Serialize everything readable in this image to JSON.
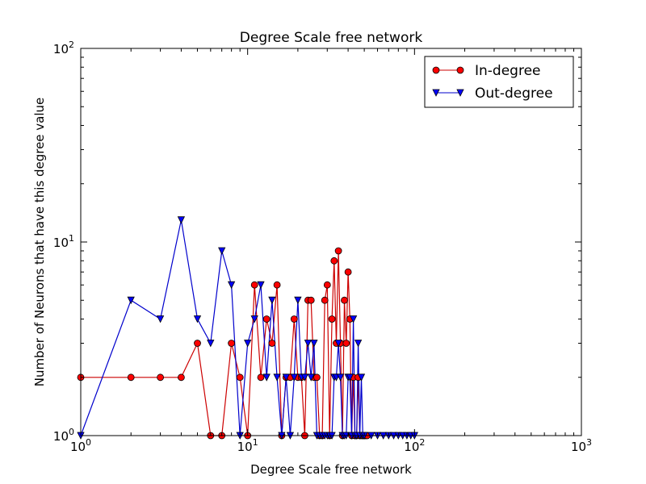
{
  "chart_data": {
    "type": "line",
    "title": "Degree Scale free network",
    "xlabel": "Degree Scale free network",
    "ylabel": "Number of Neurons that have this degree value",
    "xscale": "log",
    "yscale": "log",
    "xlim": [
      1,
      1000
    ],
    "ylim": [
      1,
      100
    ],
    "x_ticks": [
      {
        "value": 1,
        "base": "10",
        "exp": "0"
      },
      {
        "value": 10,
        "base": "10",
        "exp": "1"
      },
      {
        "value": 100,
        "base": "10",
        "exp": "2"
      },
      {
        "value": 1000,
        "base": "10",
        "exp": "3"
      }
    ],
    "y_ticks": [
      {
        "value": 1,
        "base": "10",
        "exp": "0"
      },
      {
        "value": 10,
        "base": "10",
        "exp": "1"
      },
      {
        "value": 100,
        "base": "10",
        "exp": "2"
      }
    ],
    "grid": false,
    "legend_position": "top-right",
    "series": [
      {
        "name": "In-degree",
        "color": "#ff0000",
        "line_color": "#cc0000",
        "marker": "circle",
        "x": [
          1,
          2,
          3,
          4,
          5,
          6,
          7,
          8,
          9,
          10,
          11,
          12,
          13,
          14,
          15,
          16,
          17,
          18,
          19,
          20,
          21,
          22,
          23,
          24,
          25,
          26,
          27,
          28,
          29,
          30,
          31,
          32,
          33,
          34,
          35,
          36,
          37,
          38,
          39,
          40,
          41,
          42,
          43,
          44,
          45,
          46,
          47,
          48,
          49,
          50,
          51,
          52
        ],
        "y": [
          2,
          2,
          2,
          2,
          3,
          1,
          1,
          3,
          2,
          1,
          6,
          2,
          4,
          3,
          6,
          1,
          2,
          2,
          4,
          2,
          2,
          1,
          5,
          5,
          2,
          2,
          1,
          1,
          5,
          6,
          1,
          4,
          8,
          3,
          9,
          3,
          1,
          5,
          3,
          7,
          4,
          1,
          2,
          1,
          1,
          2,
          1,
          1,
          1,
          1,
          1,
          1
        ]
      },
      {
        "name": "Out-degree",
        "color": "#0000ff",
        "line_color": "#0000cc",
        "marker": "triangle-down",
        "x": [
          1,
          2,
          3,
          4,
          5,
          6,
          7,
          8,
          9,
          10,
          11,
          12,
          13,
          14,
          15,
          16,
          17,
          18,
          19,
          20,
          21,
          22,
          23,
          24,
          25,
          26,
          27,
          28,
          29,
          30,
          31,
          32,
          33,
          34,
          35,
          36,
          37,
          38,
          39,
          40,
          41,
          42,
          43,
          44,
          45,
          46,
          47,
          48,
          49,
          50,
          55,
          60,
          65,
          70,
          75,
          80,
          85,
          90,
          95,
          100
        ],
        "y": [
          1,
          5,
          4,
          13,
          4,
          3,
          9,
          6,
          1,
          3,
          4,
          6,
          2,
          5,
          2,
          1,
          2,
          1,
          2,
          5,
          2,
          2,
          3,
          2,
          3,
          1,
          1,
          1,
          1,
          1,
          1,
          1,
          2,
          2,
          3,
          2,
          1,
          1,
          1,
          2,
          2,
          1,
          4,
          1,
          1,
          3,
          1,
          2,
          1,
          1,
          1,
          1,
          1,
          1,
          1,
          1,
          1,
          1,
          1,
          1
        ]
      }
    ]
  }
}
